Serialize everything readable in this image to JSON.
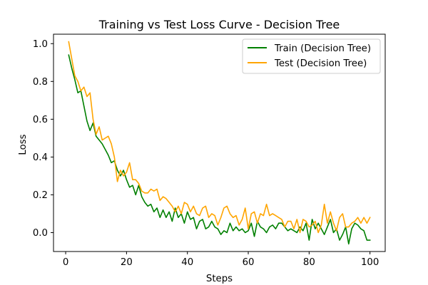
{
  "chart_data": {
    "type": "line",
    "title": "Training vs Test Loss Curve - Decision Tree",
    "xlabel": "Steps",
    "ylabel": "Loss",
    "xlim": [
      -4,
      105
    ],
    "ylim": [
      -0.1,
      1.05
    ],
    "xticks": [
      0,
      20,
      40,
      60,
      80,
      100
    ],
    "yticks": [
      0.0,
      0.2,
      0.4,
      0.6,
      0.8,
      1.0
    ],
    "grid": false,
    "legend_position": "top-right",
    "series": [
      {
        "name": "Train (Decision Tree)",
        "color": "#008000",
        "x": [
          1,
          2,
          3,
          4,
          5,
          6,
          7,
          8,
          9,
          10,
          11,
          12,
          13,
          14,
          15,
          16,
          17,
          18,
          19,
          20,
          21,
          22,
          23,
          24,
          25,
          26,
          27,
          28,
          29,
          30,
          31,
          32,
          33,
          34,
          35,
          36,
          37,
          38,
          39,
          40,
          41,
          42,
          43,
          44,
          45,
          46,
          47,
          48,
          49,
          50,
          51,
          52,
          53,
          54,
          55,
          56,
          57,
          58,
          59,
          60,
          61,
          62,
          63,
          64,
          65,
          66,
          67,
          68,
          69,
          70,
          71,
          72,
          73,
          74,
          75,
          76,
          77,
          78,
          79,
          80,
          81,
          82,
          83,
          84,
          85,
          86,
          87,
          88,
          89,
          90,
          91,
          92,
          93,
          94,
          95,
          96,
          97,
          98,
          99,
          100
        ],
        "y": [
          0.94,
          0.87,
          0.81,
          0.74,
          0.75,
          0.67,
          0.59,
          0.54,
          0.58,
          0.51,
          0.49,
          0.47,
          0.44,
          0.41,
          0.37,
          0.38,
          0.33,
          0.3,
          0.33,
          0.28,
          0.24,
          0.25,
          0.2,
          0.25,
          0.19,
          0.16,
          0.14,
          0.15,
          0.11,
          0.13,
          0.08,
          0.12,
          0.08,
          0.11,
          0.06,
          0.13,
          0.08,
          0.1,
          0.05,
          0.11,
          0.07,
          0.08,
          0.02,
          0.06,
          0.07,
          0.02,
          0.03,
          0.06,
          0.03,
          0.02,
          -0.01,
          0.01,
          0.0,
          0.05,
          0.01,
          0.03,
          0.01,
          0.02,
          0.0,
          0.01,
          0.05,
          -0.02,
          0.06,
          0.03,
          0.02,
          0.0,
          0.03,
          0.04,
          0.02,
          0.05,
          0.05,
          0.03,
          0.01,
          0.02,
          0.01,
          0.0,
          0.03,
          0.01,
          0.05,
          -0.04,
          0.07,
          0.02,
          0.05,
          0.02,
          -0.01,
          0.03,
          0.07,
          0.0,
          0.02,
          -0.04,
          -0.01,
          0.03,
          -0.06,
          0.02,
          0.05,
          0.04,
          0.02,
          0.01,
          -0.04,
          -0.04
        ]
      },
      {
        "name": "Test (Decision Tree)",
        "color": "#FFA500",
        "x": [
          1,
          2,
          3,
          4,
          5,
          6,
          7,
          8,
          9,
          10,
          11,
          12,
          13,
          14,
          15,
          16,
          17,
          18,
          19,
          20,
          21,
          22,
          23,
          24,
          25,
          26,
          27,
          28,
          29,
          30,
          31,
          32,
          33,
          34,
          35,
          36,
          37,
          38,
          39,
          40,
          41,
          42,
          43,
          44,
          45,
          46,
          47,
          48,
          49,
          50,
          51,
          52,
          53,
          54,
          55,
          56,
          57,
          58,
          59,
          60,
          61,
          62,
          63,
          64,
          65,
          66,
          67,
          68,
          69,
          70,
          71,
          72,
          73,
          74,
          75,
          76,
          77,
          78,
          79,
          80,
          81,
          82,
          83,
          84,
          85,
          86,
          87,
          88,
          89,
          90,
          91,
          92,
          93,
          94,
          95,
          96,
          97,
          98,
          99,
          100
        ],
        "y": [
          1.01,
          0.92,
          0.83,
          0.8,
          0.75,
          0.77,
          0.72,
          0.74,
          0.6,
          0.52,
          0.56,
          0.49,
          0.5,
          0.51,
          0.47,
          0.4,
          0.27,
          0.33,
          0.3,
          0.32,
          0.37,
          0.28,
          0.28,
          0.26,
          0.22,
          0.21,
          0.21,
          0.23,
          0.22,
          0.23,
          0.17,
          0.19,
          0.18,
          0.16,
          0.14,
          0.11,
          0.14,
          0.1,
          0.16,
          0.15,
          0.11,
          0.14,
          0.1,
          0.09,
          0.13,
          0.14,
          0.08,
          0.1,
          0.09,
          0.04,
          0.08,
          0.13,
          0.14,
          0.1,
          0.08,
          0.09,
          0.04,
          0.07,
          0.13,
          0.02,
          0.1,
          0.11,
          0.05,
          0.1,
          0.09,
          0.15,
          0.09,
          0.1,
          0.09,
          0.08,
          0.07,
          0.03,
          0.06,
          0.06,
          0.02,
          0.07,
          0.0,
          0.07,
          0.06,
          0.03,
          0.04,
          0.06,
          0.0,
          0.04,
          0.15,
          0.05,
          0.11,
          0.05,
          0.01,
          0.08,
          0.1,
          0.03,
          0.03,
          0.05,
          0.06,
          0.08,
          0.05,
          0.08,
          0.05,
          0.08
        ]
      }
    ]
  }
}
